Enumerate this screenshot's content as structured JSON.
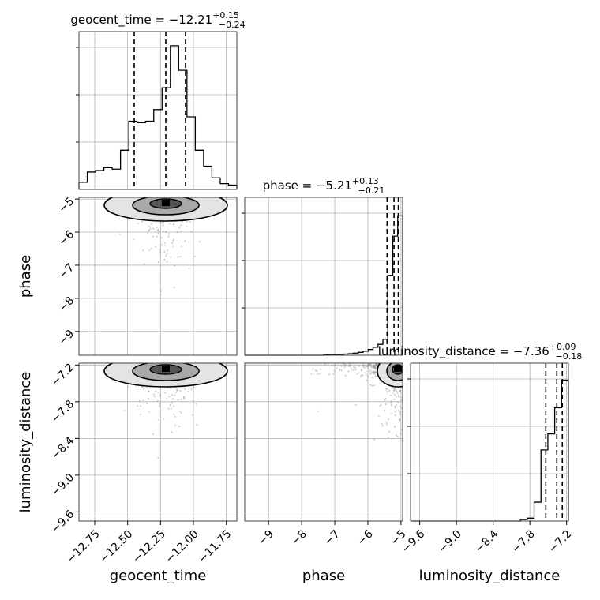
{
  "chart_data": {
    "type": "corner",
    "parameters": [
      "geocent_time",
      "phase",
      "luminosity_distance"
    ],
    "ranges": {
      "geocent_time": [
        -12.87,
        -11.67
      ],
      "phase": [
        -9.72,
        -4.95
      ],
      "luminosity_distance": [
        -9.75,
        -7.17
      ]
    },
    "ticks": {
      "geocent_time": [
        -12.75,
        -12.5,
        -12.25,
        -12.0,
        -11.75
      ],
      "phase": [
        -9,
        -8,
        -7,
        -6,
        -5
      ],
      "luminosity_distance": [
        -9.6,
        -9.0,
        -8.4,
        -7.8,
        -7.2
      ]
    },
    "tick_labels": {
      "geocent_time": [
        "−12.75",
        "−12.50",
        "−12.25",
        "−12.00",
        "−11.75"
      ],
      "phase": [
        "−9",
        "−8",
        "−7",
        "−6",
        "−5"
      ],
      "luminosity_distance": [
        "−9.6",
        "−9.0",
        "−8.4",
        "−7.8",
        "−7.2"
      ]
    },
    "axis_labels": {
      "geocent_time": "geocent_time",
      "phase": "phase",
      "luminosity_distance": "luminosity_distance"
    },
    "titles": {
      "geocent_time": {
        "label": "geocent_time = −12.21",
        "plus": "+0.15",
        "minus": "−0.24"
      },
      "phase": {
        "label": "phase = −5.21",
        "plus": "+0.13",
        "minus": "−0.21"
      },
      "luminosity_distance": {
        "label": "luminosity_distance = −7.36",
        "plus": "+0.09",
        "minus": "−0.18"
      }
    },
    "quantiles": {
      "geocent_time": [
        -12.45,
        -12.21,
        -12.06
      ],
      "phase": [
        -5.42,
        -5.21,
        -5.08
      ],
      "luminosity_distance": [
        -7.54,
        -7.36,
        -7.27
      ]
    },
    "histograms": {
      "geocent_time": [
        0.05,
        0.12,
        0.13,
        0.15,
        0.14,
        0.27,
        0.47,
        0.46,
        0.47,
        0.55,
        0.7,
        0.99,
        0.82,
        0.5,
        0.27,
        0.16,
        0.08,
        0.04,
        0.03
      ],
      "phase": [
        0,
        0,
        0,
        0,
        0,
        0,
        0,
        0,
        0,
        0,
        0,
        0,
        0,
        0,
        0,
        0,
        0.003,
        0.003,
        0.004,
        0.006,
        0.008,
        0.011,
        0.015,
        0.02,
        0.028,
        0.04,
        0.055,
        0.075,
        0.11,
        0.55,
        0.82,
        0.96
      ],
      "luminosity_distance": [
        0,
        0,
        0,
        0,
        0,
        0,
        0,
        0,
        0,
        0,
        0,
        0,
        0,
        0,
        0,
        0,
        0.01,
        0.02,
        0.13,
        0.49,
        0.6,
        0.78,
        0.97
      ]
    },
    "grid": true,
    "color": "#000000",
    "scatter_color": "#7a7a7a"
  }
}
